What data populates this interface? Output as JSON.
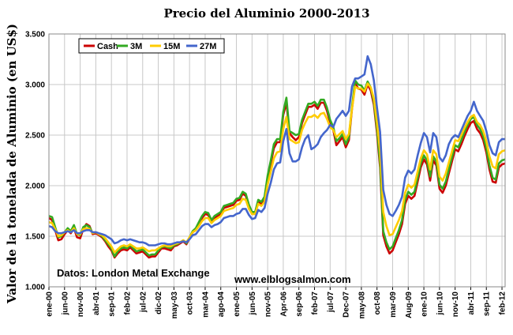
{
  "chart_data": {
    "type": "line",
    "title": "Precio del Aluminio 2000-2013",
    "xlabel": "",
    "ylabel": "Valor de la tonelada de Aluminio (en US$)",
    "ylim": [
      1000,
      3500
    ],
    "yticks": [
      "1.000",
      "1.500",
      "2.000",
      "2.500",
      "3.000",
      "3.500"
    ],
    "ytick_values": [
      1000,
      1500,
      2000,
      2500,
      3000,
      3500
    ],
    "xticks": [
      "ene-00",
      "jun-00",
      "nov-00",
      "abr-01",
      "sep-01",
      "feb-02",
      "jul-02",
      "dic-02",
      "may-03",
      "oct-03",
      "mar-04",
      "ago-04",
      "ene-05",
      "jun-05",
      "nov-05",
      "Apr-06",
      "sep-06",
      "feb-07",
      "jul-07",
      "Dec-07",
      "may-08",
      "oct-08",
      "mar-09",
      "Aug-09",
      "ene-10",
      "jun-10",
      "nov-10",
      "abr-11",
      "sep-11",
      "feb-12"
    ],
    "x": [
      "2000-01",
      "2000-02",
      "2000-03",
      "2000-04",
      "2000-05",
      "2000-06",
      "2000-07",
      "2000-08",
      "2000-09",
      "2000-10",
      "2000-11",
      "2000-12",
      "2001-01",
      "2001-02",
      "2001-03",
      "2001-04",
      "2001-05",
      "2001-06",
      "2001-07",
      "2001-08",
      "2001-09",
      "2001-10",
      "2001-11",
      "2001-12",
      "2002-01",
      "2002-02",
      "2002-03",
      "2002-04",
      "2002-05",
      "2002-06",
      "2002-07",
      "2002-08",
      "2002-09",
      "2002-10",
      "2002-11",
      "2002-12",
      "2003-01",
      "2003-02",
      "2003-03",
      "2003-04",
      "2003-05",
      "2003-06",
      "2003-07",
      "2003-08",
      "2003-09",
      "2003-10",
      "2003-11",
      "2003-12",
      "2004-01",
      "2004-02",
      "2004-03",
      "2004-04",
      "2004-05",
      "2004-06",
      "2004-07",
      "2004-08",
      "2004-09",
      "2004-10",
      "2004-11",
      "2004-12",
      "2005-01",
      "2005-02",
      "2005-03",
      "2005-04",
      "2005-05",
      "2005-06",
      "2005-07",
      "2005-08",
      "2005-09",
      "2005-10",
      "2005-11",
      "2005-12",
      "2006-01",
      "2006-02",
      "2006-03",
      "2006-04",
      "2006-05",
      "2006-06",
      "2006-07",
      "2006-08",
      "2006-09",
      "2006-10",
      "2006-11",
      "2006-12",
      "2007-01",
      "2007-02",
      "2007-03",
      "2007-04",
      "2007-05",
      "2007-06",
      "2007-07",
      "2007-08",
      "2007-09",
      "2007-10",
      "2007-11",
      "2007-12",
      "2008-01",
      "2008-02",
      "2008-03",
      "2008-04",
      "2008-05",
      "2008-06",
      "2008-07",
      "2008-08",
      "2008-09",
      "2008-10",
      "2008-11",
      "2008-12",
      "2009-01",
      "2009-02",
      "2009-03",
      "2009-04",
      "2009-05",
      "2009-06",
      "2009-07",
      "2009-08",
      "2009-09",
      "2009-10",
      "2009-11",
      "2009-12",
      "2010-01",
      "2010-02",
      "2010-03",
      "2010-04",
      "2010-05",
      "2010-06",
      "2010-07",
      "2010-08",
      "2010-09",
      "2010-10",
      "2010-11",
      "2010-12",
      "2011-01",
      "2011-02",
      "2011-03",
      "2011-04",
      "2011-05",
      "2011-06",
      "2011-07",
      "2011-08",
      "2011-09",
      "2011-10",
      "2011-11",
      "2011-12",
      "2012-01",
      "2012-02",
      "2012-03"
    ],
    "series": [
      {
        "name": "Cash",
        "color": "#cc0000",
        "values": [
          1680,
          1660,
          1560,
          1460,
          1470,
          1520,
          1560,
          1530,
          1580,
          1490,
          1480,
          1570,
          1620,
          1600,
          1520,
          1530,
          1510,
          1490,
          1450,
          1400,
          1360,
          1290,
          1330,
          1360,
          1370,
          1360,
          1390,
          1360,
          1330,
          1340,
          1350,
          1320,
          1290,
          1300,
          1300,
          1340,
          1380,
          1380,
          1370,
          1360,
          1400,
          1410,
          1430,
          1450,
          1420,
          1480,
          1540,
          1560,
          1620,
          1680,
          1720,
          1710,
          1640,
          1680,
          1700,
          1720,
          1780,
          1790,
          1800,
          1810,
          1850,
          1860,
          1920,
          1900,
          1790,
          1720,
          1720,
          1840,
          1820,
          1870,
          2070,
          2220,
          2370,
          2430,
          2430,
          2700,
          2820,
          2520,
          2480,
          2450,
          2480,
          2620,
          2700,
          2780,
          2780,
          2800,
          2760,
          2820,
          2820,
          2740,
          2620,
          2550,
          2400,
          2440,
          2480,
          2380,
          2450,
          2760,
          3010,
          2960,
          2950,
          2900,
          3000,
          2940,
          2800,
          2520,
          2180,
          1510,
          1400,
          1330,
          1360,
          1440,
          1520,
          1620,
          1820,
          1900,
          1870,
          1900,
          2040,
          2180,
          2260,
          2210,
          2050,
          2250,
          2200,
          1970,
          1930,
          2000,
          2120,
          2240,
          2360,
          2340,
          2410,
          2490,
          2560,
          2620,
          2640,
          2560,
          2520,
          2450,
          2330,
          2160,
          2040,
          2030,
          2180,
          2210,
          2220
        ]
      },
      {
        "name": "3M",
        "color": "#33aa22",
        "values": [
          1700,
          1690,
          1590,
          1490,
          1500,
          1540,
          1580,
          1550,
          1610,
          1520,
          1510,
          1590,
          1610,
          1590,
          1530,
          1540,
          1520,
          1500,
          1460,
          1420,
          1380,
          1300,
          1350,
          1380,
          1390,
          1380,
          1410,
          1380,
          1350,
          1360,
          1370,
          1340,
          1310,
          1320,
          1320,
          1360,
          1390,
          1400,
          1390,
          1380,
          1410,
          1420,
          1440,
          1460,
          1430,
          1490,
          1550,
          1580,
          1640,
          1700,
          1740,
          1730,
          1660,
          1700,
          1720,
          1740,
          1800,
          1810,
          1820,
          1830,
          1870,
          1880,
          1940,
          1920,
          1810,
          1740,
          1740,
          1860,
          1840,
          1890,
          2100,
          2250,
          2410,
          2460,
          2460,
          2730,
          2870,
          2540,
          2520,
          2500,
          2510,
          2650,
          2730,
          2810,
          2810,
          2830,
          2790,
          2850,
          2850,
          2770,
          2650,
          2580,
          2440,
          2470,
          2510,
          2410,
          2480,
          2780,
          3040,
          3000,
          2990,
          2940,
          3030,
          2970,
          2830,
          2560,
          2220,
          1550,
          1440,
          1370,
          1400,
          1480,
          1560,
          1660,
          1860,
          1940,
          1910,
          1940,
          2080,
          2220,
          2300,
          2250,
          2090,
          2290,
          2240,
          2010,
          1970,
          2040,
          2160,
          2280,
          2400,
          2380,
          2450,
          2530,
          2600,
          2660,
          2680,
          2600,
          2560,
          2490,
          2370,
          2200,
          2080,
          2060,
          2220,
          2250,
          2260
        ]
      },
      {
        "name": "15M",
        "color": "#ffcc00",
        "values": [
          1640,
          1630,
          1570,
          1500,
          1510,
          1540,
          1560,
          1540,
          1580,
          1520,
          1520,
          1570,
          1580,
          1570,
          1530,
          1540,
          1520,
          1510,
          1480,
          1440,
          1400,
          1340,
          1370,
          1400,
          1410,
          1400,
          1420,
          1400,
          1380,
          1380,
          1390,
          1370,
          1350,
          1360,
          1360,
          1380,
          1400,
          1410,
          1400,
          1400,
          1420,
          1430,
          1440,
          1460,
          1440,
          1490,
          1540,
          1560,
          1600,
          1650,
          1680,
          1680,
          1630,
          1660,
          1680,
          1700,
          1750,
          1760,
          1770,
          1780,
          1810,
          1820,
          1870,
          1860,
          1770,
          1720,
          1720,
          1820,
          1800,
          1840,
          2010,
          2140,
          2270,
          2330,
          2340,
          2560,
          2680,
          2460,
          2440,
          2420,
          2430,
          2550,
          2620,
          2680,
          2680,
          2700,
          2670,
          2710,
          2720,
          2660,
          2580,
          2550,
          2480,
          2510,
          2540,
          2460,
          2510,
          2760,
          2980,
          2960,
          2960,
          2930,
          3010,
          2970,
          2860,
          2620,
          2330,
          1740,
          1600,
          1510,
          1520,
          1590,
          1660,
          1750,
          1930,
          2010,
          1980,
          2010,
          2140,
          2270,
          2350,
          2310,
          2160,
          2350,
          2310,
          2090,
          2050,
          2120,
          2230,
          2340,
          2450,
          2440,
          2500,
          2570,
          2630,
          2680,
          2700,
          2630,
          2600,
          2540,
          2440,
          2290,
          2190,
          2170,
          2310,
          2340,
          2350
        ]
      },
      {
        "name": "27M",
        "color": "#4466cc",
        "values": [
          1600,
          1590,
          1550,
          1530,
          1530,
          1540,
          1550,
          1540,
          1560,
          1530,
          1530,
          1550,
          1560,
          1560,
          1540,
          1540,
          1530,
          1520,
          1510,
          1490,
          1470,
          1430,
          1440,
          1460,
          1470,
          1460,
          1470,
          1460,
          1450,
          1440,
          1440,
          1430,
          1410,
          1410,
          1410,
          1420,
          1430,
          1430,
          1420,
          1420,
          1430,
          1440,
          1440,
          1450,
          1440,
          1470,
          1510,
          1520,
          1560,
          1600,
          1620,
          1620,
          1590,
          1610,
          1620,
          1640,
          1680,
          1690,
          1700,
          1700,
          1720,
          1730,
          1770,
          1770,
          1710,
          1670,
          1680,
          1760,
          1740,
          1780,
          1920,
          2030,
          2160,
          2220,
          2230,
          2440,
          2560,
          2320,
          2240,
          2240,
          2260,
          2380,
          2460,
          2500,
          2360,
          2380,
          2410,
          2480,
          2520,
          2550,
          2600,
          2580,
          2660,
          2700,
          2740,
          2690,
          2740,
          2980,
          3060,
          3060,
          3080,
          3100,
          3280,
          3200,
          3040,
          2770,
          2530,
          1960,
          1810,
          1720,
          1700,
          1750,
          1810,
          1890,
          2080,
          2150,
          2120,
          2160,
          2300,
          2420,
          2520,
          2480,
          2330,
          2520,
          2480,
          2280,
          2240,
          2300,
          2410,
          2470,
          2500,
          2480,
          2550,
          2620,
          2690,
          2740,
          2830,
          2740,
          2690,
          2640,
          2540,
          2400,
          2320,
          2300,
          2430,
          2460,
          2460
        ]
      }
    ],
    "legend": {
      "entries": [
        "Cash",
        "3M",
        "15M",
        "27M"
      ],
      "placement": "top-left"
    },
    "grid": true,
    "annotations": [
      "Datos: London Metal Exchange",
      "www.elblogsalmon.com"
    ]
  }
}
